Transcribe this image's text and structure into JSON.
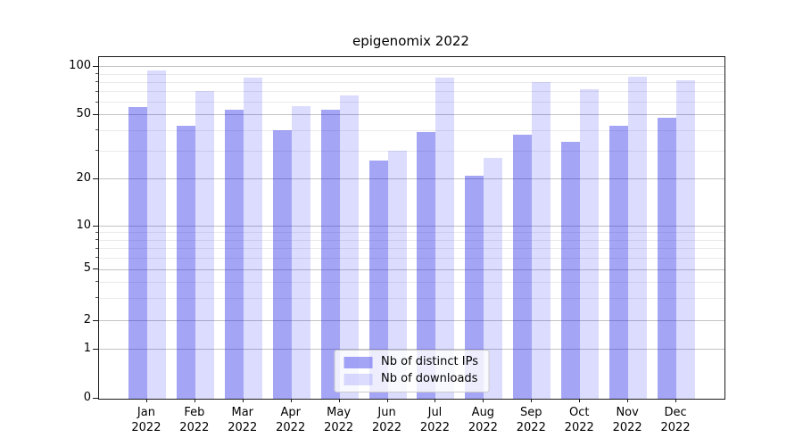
{
  "chart_data": {
    "type": "bar",
    "title": "epigenomix 2022",
    "categories": [
      "Jan 2022",
      "Feb 2022",
      "Mar 2022",
      "Apr 2022",
      "May 2022",
      "Jun 2022",
      "Jul 2022",
      "Aug 2022",
      "Sep 2022",
      "Oct 2022",
      "Nov 2022",
      "Dec 2022"
    ],
    "series": [
      {
        "name": "Nb of distinct IPs",
        "color": "#1414e662",
        "values": [
          56,
          43,
          54,
          40,
          54,
          26,
          39,
          21,
          38,
          34,
          43,
          48
        ]
      },
      {
        "name": "Nb of downloads",
        "color": "#0000ff23",
        "values": [
          95,
          71,
          86,
          57,
          66,
          30,
          86,
          27,
          80,
          73,
          87,
          83
        ]
      }
    ],
    "yscale": "symlog",
    "yticks": [
      100,
      50,
      20,
      10,
      5,
      2,
      1,
      0
    ],
    "ylim": [
      0,
      115
    ],
    "grid": true,
    "legend_position": "lower center",
    "colors": {
      "bar_dark": "#a5a5f4",
      "bar_light": "#dcdcff",
      "grid_major": "#c3c3c3",
      "grid_minor": "#eaeaea",
      "spine": "#1a1a1a"
    }
  }
}
